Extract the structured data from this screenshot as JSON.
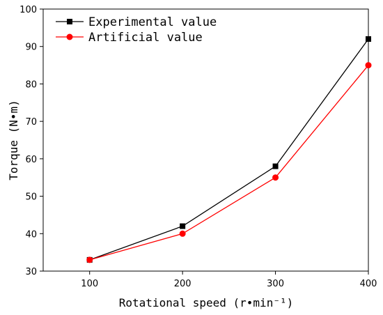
{
  "chart_data": {
    "type": "line",
    "title": "",
    "xlabel": "Rotational speed (r•min⁻¹)",
    "ylabel": "Torque (N•m)",
    "x": [
      100,
      200,
      300,
      400
    ],
    "xlim": [
      50,
      400
    ],
    "ylim": [
      30,
      100
    ],
    "xticks": [
      "100",
      "200",
      "300",
      "400"
    ],
    "yticks": [
      "30",
      "40",
      "50",
      "60",
      "70",
      "80",
      "90",
      "100"
    ],
    "grid": false,
    "legend_position": "top-left",
    "series": [
      {
        "name": "Experimental value",
        "values": [
          33,
          42,
          58,
          92
        ],
        "color": "#000000",
        "marker": "square"
      },
      {
        "name": "Artificial value",
        "values": [
          33,
          40,
          55,
          85
        ],
        "color": "#ff0000",
        "marker": "circle"
      }
    ]
  }
}
